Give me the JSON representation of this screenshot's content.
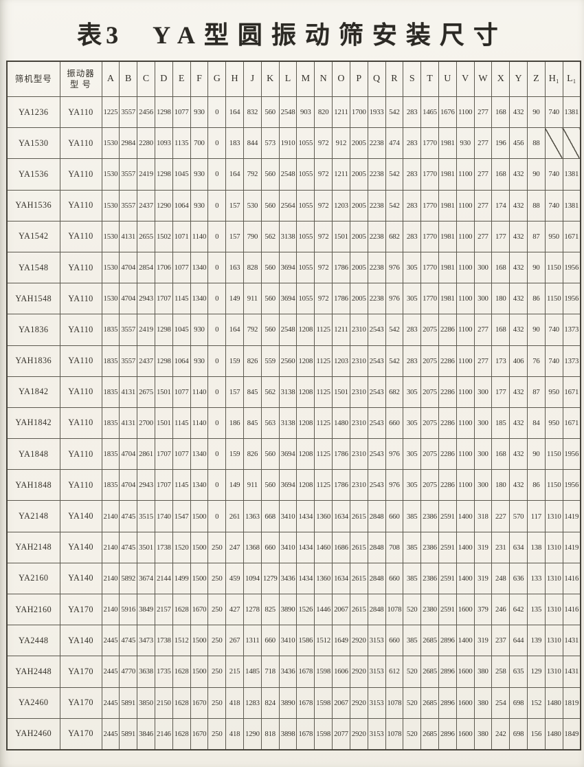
{
  "title": {
    "prefix": "表3",
    "text": "YA型圆振动筛安装尺寸"
  },
  "colors": {
    "paper": "#f4f1e9",
    "ink": "#33302a",
    "grid_line": "#5b584e"
  },
  "table": {
    "headers": [
      "筛机型号",
      "振动器\n型 号",
      "A",
      "B",
      "C",
      "D",
      "E",
      "F",
      "G",
      "H",
      "J",
      "K",
      "L",
      "M",
      "N",
      "O",
      "P",
      "Q",
      "R",
      "S",
      "T",
      "U",
      "V",
      "W",
      "X",
      "Y",
      "Z",
      "H₁",
      "L₁"
    ],
    "rows": [
      {
        "model": "YA1236",
        "vibrator": "YA110",
        "values": [
          "1225",
          "3557",
          "2456",
          "1298",
          "1077",
          "930",
          "0",
          "164",
          "832",
          "560",
          "2548",
          "903",
          "820",
          "1211",
          "1700",
          "1933",
          "542",
          "283",
          "1465",
          "1676",
          "1100",
          "277",
          "168",
          "432",
          "90",
          "740",
          "1381"
        ]
      },
      {
        "model": "YA1530",
        "vibrator": "YA110",
        "values": [
          "1530",
          "2984",
          "2280",
          "1093",
          "1135",
          "700",
          "0",
          "183",
          "844",
          "573",
          "1910",
          "1055",
          "972",
          "912",
          "2005",
          "2238",
          "474",
          "283",
          "1770",
          "1981",
          "930",
          "277",
          "196",
          "456",
          "88",
          "/",
          "/"
        ]
      },
      {
        "model": "YA1536",
        "vibrator": "YA110",
        "values": [
          "1530",
          "3557",
          "2419",
          "1298",
          "1045",
          "930",
          "0",
          "164",
          "792",
          "560",
          "2548",
          "1055",
          "972",
          "1211",
          "2005",
          "2238",
          "542",
          "283",
          "1770",
          "1981",
          "1100",
          "277",
          "168",
          "432",
          "90",
          "740",
          "1381"
        ]
      },
      {
        "model": "YAH1536",
        "vibrator": "YA110",
        "values": [
          "1530",
          "3557",
          "2437",
          "1290",
          "1064",
          "930",
          "0",
          "157",
          "530",
          "560",
          "2564",
          "1055",
          "972",
          "1203",
          "2005",
          "2238",
          "542",
          "283",
          "1770",
          "1981",
          "1100",
          "277",
          "174",
          "432",
          "88",
          "740",
          "1381"
        ]
      },
      {
        "model": "YA1542",
        "vibrator": "YA110",
        "values": [
          "1530",
          "4131",
          "2655",
          "1502",
          "1071",
          "1140",
          "0",
          "157",
          "790",
          "562",
          "3138",
          "1055",
          "972",
          "1501",
          "2005",
          "2238",
          "682",
          "283",
          "1770",
          "1981",
          "1100",
          "277",
          "177",
          "432",
          "87",
          "950",
          "1671"
        ]
      },
      {
        "model": "YA1548",
        "vibrator": "YA110",
        "values": [
          "1530",
          "4704",
          "2854",
          "1706",
          "1077",
          "1340",
          "0",
          "163",
          "828",
          "560",
          "3694",
          "1055",
          "972",
          "1786",
          "2005",
          "2238",
          "976",
          "305",
          "1770",
          "1981",
          "1100",
          "300",
          "168",
          "432",
          "90",
          "1150",
          "1956"
        ]
      },
      {
        "model": "YAH1548",
        "vibrator": "YA110",
        "values": [
          "1530",
          "4704",
          "2943",
          "1707",
          "1145",
          "1340",
          "0",
          "149",
          "911",
          "560",
          "3694",
          "1055",
          "972",
          "1786",
          "2005",
          "2238",
          "976",
          "305",
          "1770",
          "1981",
          "1100",
          "300",
          "180",
          "432",
          "86",
          "1150",
          "1956"
        ]
      },
      {
        "model": "YA1836",
        "vibrator": "YA110",
        "values": [
          "1835",
          "3557",
          "2419",
          "1298",
          "1045",
          "930",
          "0",
          "164",
          "792",
          "560",
          "2548",
          "1208",
          "1125",
          "1211",
          "2310",
          "2543",
          "542",
          "283",
          "2075",
          "2286",
          "1100",
          "277",
          "168",
          "432",
          "90",
          "740",
          "1373"
        ]
      },
      {
        "model": "YAH1836",
        "vibrator": "YA110",
        "values": [
          "1835",
          "3557",
          "2437",
          "1298",
          "1064",
          "930",
          "0",
          "159",
          "826",
          "559",
          "2560",
          "1208",
          "1125",
          "1203",
          "2310",
          "2543",
          "542",
          "283",
          "2075",
          "2286",
          "1100",
          "277",
          "173",
          "406",
          "76",
          "740",
          "1373"
        ]
      },
      {
        "model": "YA1842",
        "vibrator": "YA110",
        "values": [
          "1835",
          "4131",
          "2675",
          "1501",
          "1077",
          "1140",
          "0",
          "157",
          "845",
          "562",
          "3138",
          "1208",
          "1125",
          "1501",
          "2310",
          "2543",
          "682",
          "305",
          "2075",
          "2286",
          "1100",
          "300",
          "177",
          "432",
          "87",
          "950",
          "1671"
        ]
      },
      {
        "model": "YAH1842",
        "vibrator": "YA110",
        "values": [
          "1835",
          "4131",
          "2700",
          "1501",
          "1145",
          "1140",
          "0",
          "186",
          "845",
          "563",
          "3138",
          "1208",
          "1125",
          "1480",
          "2310",
          "2543",
          "660",
          "305",
          "2075",
          "2286",
          "1100",
          "300",
          "185",
          "432",
          "84",
          "950",
          "1671"
        ]
      },
      {
        "model": "YA1848",
        "vibrator": "YA110",
        "values": [
          "1835",
          "4704",
          "2861",
          "1707",
          "1077",
          "1340",
          "0",
          "159",
          "826",
          "560",
          "3694",
          "1208",
          "1125",
          "1786",
          "2310",
          "2543",
          "976",
          "305",
          "2075",
          "2286",
          "1100",
          "300",
          "168",
          "432",
          "90",
          "1150",
          "1956"
        ]
      },
      {
        "model": "YAH1848",
        "vibrator": "YA110",
        "values": [
          "1835",
          "4704",
          "2943",
          "1707",
          "1145",
          "1340",
          "0",
          "149",
          "911",
          "560",
          "3694",
          "1208",
          "1125",
          "1786",
          "2310",
          "2543",
          "976",
          "305",
          "2075",
          "2286",
          "1100",
          "300",
          "180",
          "432",
          "86",
          "1150",
          "1956"
        ]
      },
      {
        "model": "YA2148",
        "vibrator": "YA140",
        "values": [
          "2140",
          "4745",
          "3515",
          "1740",
          "1547",
          "1500",
          "0",
          "261",
          "1363",
          "668",
          "3410",
          "1434",
          "1360",
          "1634",
          "2615",
          "2848",
          "660",
          "385",
          "2386",
          "2591",
          "1400",
          "318",
          "227",
          "570",
          "117",
          "1310",
          "1419"
        ]
      },
      {
        "model": "YAH2148",
        "vibrator": "YA140",
        "values": [
          "2140",
          "4745",
          "3501",
          "1738",
          "1520",
          "1500",
          "250",
          "247",
          "1368",
          "660",
          "3410",
          "1434",
          "1460",
          "1686",
          "2615",
          "2848",
          "708",
          "385",
          "2386",
          "2591",
          "1400",
          "319",
          "231",
          "634",
          "138",
          "1310",
          "1419"
        ]
      },
      {
        "model": "YA2160",
        "vibrator": "YA140",
        "values": [
          "2140",
          "5892",
          "3674",
          "2144",
          "1499",
          "1500",
          "250",
          "459",
          "1094",
          "1279",
          "3436",
          "1434",
          "1360",
          "1634",
          "2615",
          "2848",
          "660",
          "385",
          "2386",
          "2591",
          "1400",
          "319",
          "248",
          "636",
          "133",
          "1310",
          "1416"
        ]
      },
      {
        "model": "YAH2160",
        "vibrator": "YA170",
        "values": [
          "2140",
          "5916",
          "3849",
          "2157",
          "1628",
          "1670",
          "250",
          "427",
          "1278",
          "825",
          "3890",
          "1526",
          "1446",
          "2067",
          "2615",
          "2848",
          "1078",
          "520",
          "2380",
          "2591",
          "1600",
          "379",
          "246",
          "642",
          "135",
          "1310",
          "1416"
        ]
      },
      {
        "model": "YA2448",
        "vibrator": "YA140",
        "values": [
          "2445",
          "4745",
          "3473",
          "1738",
          "1512",
          "1500",
          "250",
          "267",
          "1311",
          "660",
          "3410",
          "1586",
          "1512",
          "1649",
          "2920",
          "3153",
          "660",
          "385",
          "2685",
          "2896",
          "1400",
          "319",
          "237",
          "644",
          "139",
          "1310",
          "1431"
        ]
      },
      {
        "model": "YAH2448",
        "vibrator": "YA170",
        "values": [
          "2445",
          "4770",
          "3638",
          "1735",
          "1628",
          "1500",
          "250",
          "215",
          "1485",
          "718",
          "3436",
          "1678",
          "1598",
          "1606",
          "2920",
          "3153",
          "612",
          "520",
          "2685",
          "2896",
          "1600",
          "380",
          "258",
          "635",
          "129",
          "1310",
          "1431"
        ]
      },
      {
        "model": "YA2460",
        "vibrator": "YA170",
        "values": [
          "2445",
          "5891",
          "3850",
          "2150",
          "1628",
          "1670",
          "250",
          "418",
          "1283",
          "824",
          "3890",
          "1678",
          "1598",
          "2067",
          "2920",
          "3153",
          "1078",
          "520",
          "2685",
          "2896",
          "1600",
          "380",
          "254",
          "698",
          "152",
          "1480",
          "1819"
        ]
      },
      {
        "model": "YAH2460",
        "vibrator": "YA170",
        "values": [
          "2445",
          "5891",
          "3846",
          "2146",
          "1628",
          "1670",
          "250",
          "418",
          "1290",
          "818",
          "3898",
          "1678",
          "1598",
          "2077",
          "2920",
          "3153",
          "1078",
          "520",
          "2685",
          "2896",
          "1600",
          "380",
          "242",
          "698",
          "156",
          "1480",
          "1849"
        ]
      }
    ]
  }
}
